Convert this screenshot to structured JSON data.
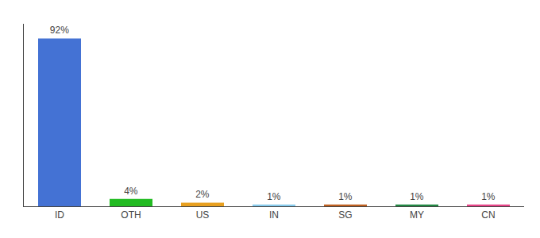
{
  "chart_data": {
    "type": "bar",
    "categories": [
      "ID",
      "OTH",
      "US",
      "IN",
      "SG",
      "MY",
      "CN"
    ],
    "values": [
      92,
      4,
      2,
      1,
      1,
      1,
      1
    ],
    "value_labels": [
      "92%",
      "4%",
      "2%",
      "1%",
      "1%",
      "1%",
      "1%"
    ],
    "colors": [
      "#4472d4",
      "#22bb22",
      "#e8a020",
      "#88ccee",
      "#c06020",
      "#228844",
      "#e84488"
    ],
    "ylim": [
      0,
      100
    ],
    "data_labels": true,
    "tick_labels": "x",
    "grid": false
  }
}
